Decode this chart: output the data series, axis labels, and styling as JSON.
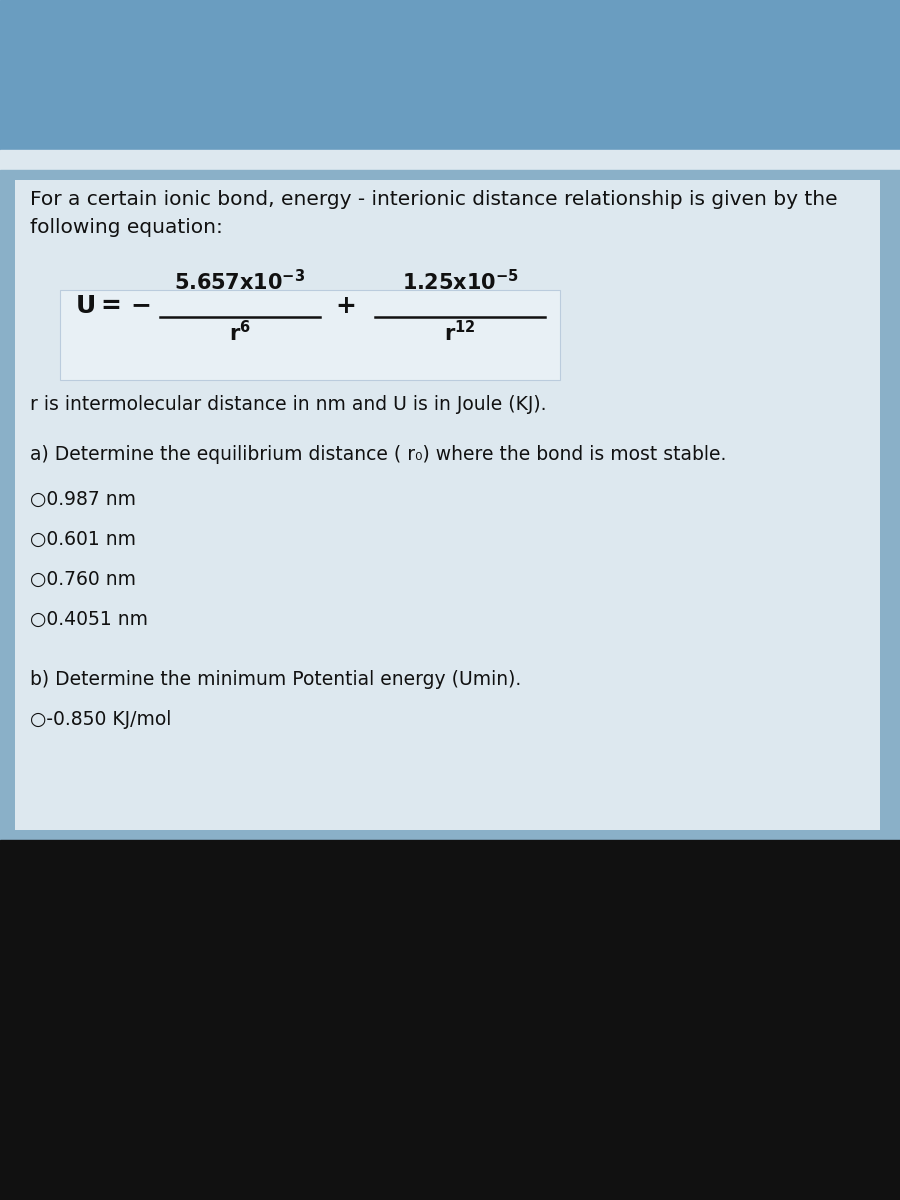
{
  "bg_blue_color": "#6a9bbf",
  "bg_content_color": "#7aaabf",
  "bg_white_strip": "#e8eef2",
  "content_bg": "#c8d8e5",
  "eq_box_color": "#dce8f0",
  "bottom_black": "#111111",
  "text_color": "#111111",
  "title_line1": "For a certain ionic bond, energy - interionic distance relationship is given by the",
  "title_line2": "following equation:",
  "r_is_text": "r is intermolecular distance in nm and U is in Joule (KJ).",
  "part_a_text": "a) Determine the equilibrium distance ( r₀) where the bond is most stable.",
  "choices_a": [
    "○0.987 nm",
    "○0.601 nm",
    "○0.760 nm",
    "○0.4051 nm"
  ],
  "part_b_text": "b) Determine the minimum Potential energy (Umin).",
  "choice_b": "○-0.850 KJ/mol",
  "eq_lhs": "U = −",
  "eq_num1": "5.657x10⁻³",
  "eq_den1": "r⁶",
  "eq_plus": "+",
  "eq_num2": "1.25x10⁻⁵",
  "eq_den2": "r¹²"
}
